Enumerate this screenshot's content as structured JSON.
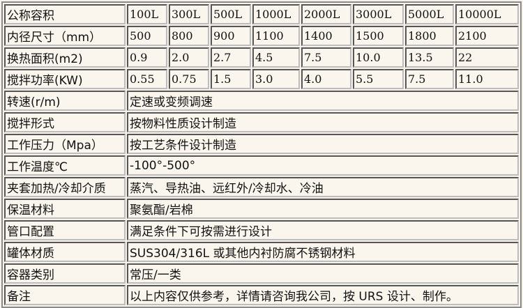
{
  "spec_rows": [
    {
      "label": "公称容积",
      "values": [
        "100L",
        "300L",
        "500L",
        "1000L",
        "2000L",
        "3000L",
        "5000L",
        "10000L"
      ]
    },
    {
      "label": "内径尺寸（mm）",
      "values": [
        "500",
        "800",
        "900",
        "1100",
        "1400",
        "1500",
        "1800",
        "2100"
      ]
    },
    {
      "label": "换热面积(m2)",
      "values": [
        "0.9",
        "2.0",
        "2.7",
        "4.5",
        "7.5",
        "10.0",
        "13.5",
        "22"
      ]
    },
    {
      "label": "搅拌功率(KW)",
      "values": [
        "0.55",
        "0.75",
        "1.5",
        "3.0",
        "4.0",
        "5.5",
        "7.5",
        "11.0"
      ]
    }
  ],
  "info_rows": [
    {
      "label": "转速(r/m)",
      "value": "定速或变频调速"
    },
    {
      "label": "搅拌形式",
      "value": "按物料性质设计制造"
    },
    {
      "label": "工作压力（Mpa）",
      "value": "按工艺条件设计制造"
    },
    {
      "label": "工作温度℃",
      "value": "-100°-500°"
    },
    {
      "label": "夹套加热/冷却介质",
      "value": "蒸汽、导热油、远红外/冷却水、冷油"
    },
    {
      "label": "保温材料",
      "value": "聚氨酯/岩棉"
    },
    {
      "label": "管口配置",
      "value": "满足条件下可按需进行设计"
    },
    {
      "label": "罐体材质",
      "value": "SUS304/316L 或其他内衬防腐不锈钢材料"
    },
    {
      "label": "容器类别",
      "value": "常压/一类"
    },
    {
      "label": "备注",
      "value": "以上内容仅供参考，详情请咨询我公司，按 URS 设计、制作。"
    }
  ]
}
